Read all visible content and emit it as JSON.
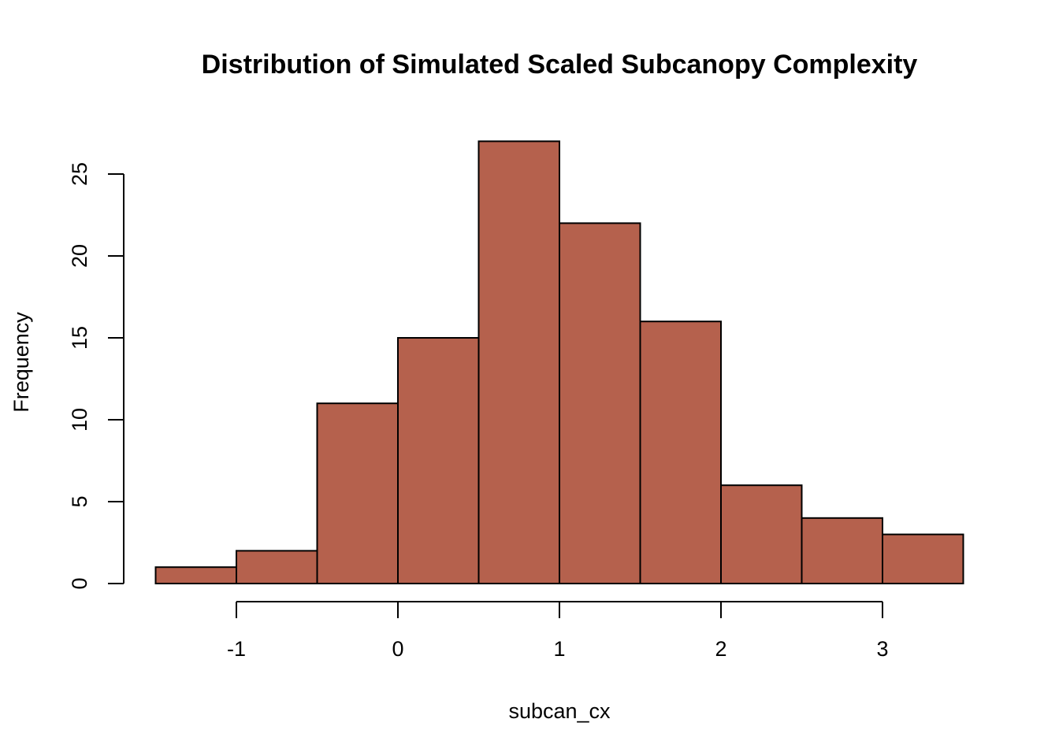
{
  "chart_data": {
    "type": "bar",
    "title": "Distribution of Simulated Scaled Subcanopy Complexity",
    "xlabel": "subcan_cx",
    "ylabel": "Frequency",
    "bin_edges": [
      -1.5,
      -1.0,
      -0.5,
      0.0,
      0.5,
      1.0,
      1.5,
      2.0,
      2.5,
      3.0,
      3.5
    ],
    "values": [
      1,
      2,
      11,
      15,
      27,
      22,
      16,
      6,
      4,
      3
    ],
    "xticks": [
      -1,
      0,
      1,
      2,
      3
    ],
    "xtick_labels": [
      "-1",
      "0",
      "1",
      "2",
      "3"
    ],
    "yticks": [
      0,
      5,
      10,
      15,
      20,
      25
    ],
    "ytick_labels": [
      "0",
      "5",
      "10",
      "15",
      "20",
      "25"
    ],
    "xlim": [
      -1.5,
      3.5
    ],
    "ylim": [
      0,
      27
    ],
    "bar_color": "#B5614D",
    "grid": false
  }
}
